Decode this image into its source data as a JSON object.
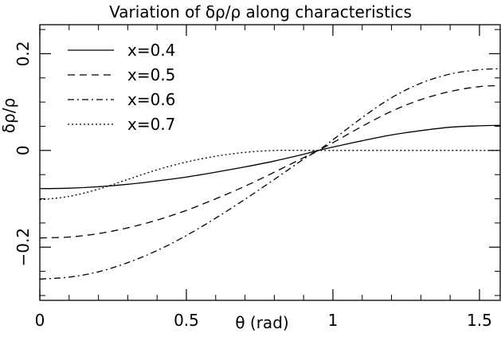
{
  "chart_data": {
    "type": "line",
    "title": "Variation of δρ/ρ along characteristics",
    "xlabel": "θ (rad)",
    "ylabel": "δρ/ρ",
    "xlim": [
      0,
      1.5708
    ],
    "ylim": [
      -0.31,
      0.26
    ],
    "xticks": [
      0,
      0.5,
      1,
      1.5
    ],
    "xtick_labels": [
      "0",
      "0.5",
      "1",
      "1.5"
    ],
    "yticks": [
      -0.2,
      0,
      0.2
    ],
    "ytick_labels": [
      "−0.2",
      "0",
      "0.2"
    ],
    "grid": false,
    "legend_position": "top-left",
    "series": [
      {
        "name": "x=0.4",
        "dash": "solid",
        "x": [
          0,
          0.1,
          0.2,
          0.3,
          0.4,
          0.5,
          0.6,
          0.7,
          0.8,
          0.9,
          0.95,
          1.0,
          1.1,
          1.2,
          1.3,
          1.4,
          1.5,
          1.5708
        ],
        "y": [
          -0.079,
          -0.078,
          -0.075,
          -0.07,
          -0.063,
          -0.055,
          -0.045,
          -0.034,
          -0.022,
          -0.008,
          0.0,
          0.007,
          0.02,
          0.032,
          0.041,
          0.048,
          0.051,
          0.052
        ]
      },
      {
        "name": "x=0.5",
        "dash": "dashed",
        "x": [
          0,
          0.1,
          0.2,
          0.3,
          0.4,
          0.5,
          0.6,
          0.7,
          0.8,
          0.9,
          0.95,
          1.0,
          1.1,
          1.2,
          1.3,
          1.4,
          1.5,
          1.5708
        ],
        "y": [
          -0.181,
          -0.179,
          -0.172,
          -0.16,
          -0.144,
          -0.124,
          -0.1,
          -0.074,
          -0.045,
          -0.015,
          0.0,
          0.016,
          0.05,
          0.081,
          0.105,
          0.122,
          0.132,
          0.134
        ]
      },
      {
        "name": "x=0.6",
        "dash": "dashdot",
        "x": [
          0,
          0.1,
          0.2,
          0.3,
          0.4,
          0.5,
          0.6,
          0.7,
          0.8,
          0.9,
          0.95,
          1.0,
          1.1,
          1.2,
          1.3,
          1.4,
          1.5,
          1.5708
        ],
        "y": [
          -0.266,
          -0.262,
          -0.251,
          -0.232,
          -0.207,
          -0.176,
          -0.14,
          -0.101,
          -0.06,
          -0.018,
          0.0,
          0.022,
          0.068,
          0.109,
          0.139,
          0.158,
          0.167,
          0.169
        ]
      },
      {
        "name": "x=0.7",
        "dash": "dotted",
        "x": [
          0,
          0.1,
          0.2,
          0.3,
          0.4,
          0.5,
          0.6,
          0.7,
          0.8,
          0.9,
          0.95,
          1.0,
          1.1,
          1.2,
          1.3,
          1.4,
          1.5,
          1.5708
        ],
        "y": [
          -0.102,
          -0.095,
          -0.08,
          -0.06,
          -0.04,
          -0.024,
          -0.012,
          -0.004,
          0.0,
          0.0,
          0.0,
          0.0,
          0.0,
          0.0,
          0.0,
          0.0,
          0.0,
          0.0
        ]
      }
    ]
  }
}
